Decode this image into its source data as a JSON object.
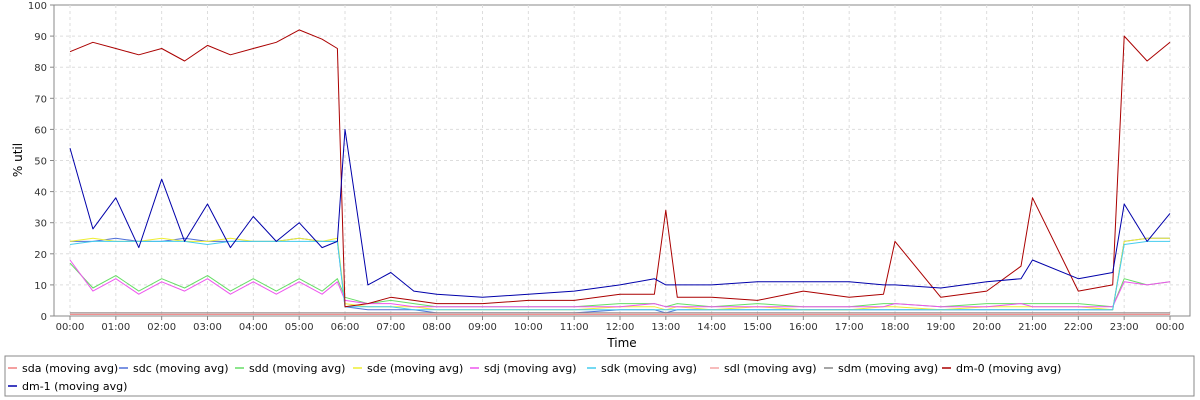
{
  "chart_data": {
    "type": "line",
    "title": "",
    "xlabel": "Time",
    "ylabel": "% util",
    "ylim": [
      0,
      100
    ],
    "yticks": [
      0,
      10,
      20,
      30,
      40,
      50,
      60,
      70,
      80,
      90,
      100
    ],
    "xlim": [
      "00:00",
      "24:00"
    ],
    "xtick_labels": [
      "00:00",
      "01:00",
      "02:00",
      "03:00",
      "04:00",
      "05:00",
      "06:00",
      "07:00",
      "08:00",
      "09:00",
      "10:00",
      "11:00",
      "12:00",
      "13:00",
      "14:00",
      "15:00",
      "16:00",
      "17:00",
      "18:00",
      "19:00",
      "20:00",
      "21:00",
      "22:00",
      "23:00",
      "00:00"
    ],
    "grid": true,
    "legend_position": "bottom",
    "x": [
      "00:00",
      "00:30",
      "01:00",
      "01:30",
      "02:00",
      "02:30",
      "03:00",
      "03:30",
      "04:00",
      "04:30",
      "05:00",
      "05:30",
      "05:50",
      "06:00",
      "06:30",
      "07:00",
      "07:30",
      "08:00",
      "09:00",
      "10:00",
      "11:00",
      "12:00",
      "12:45",
      "13:00",
      "13:15",
      "14:00",
      "15:00",
      "16:00",
      "17:00",
      "17:45",
      "18:00",
      "19:00",
      "20:00",
      "20:45",
      "21:00",
      "22:00",
      "22:45",
      "23:00",
      "23:30",
      "24:00"
    ],
    "series": [
      {
        "name": "sda (moving avg)",
        "color": "#f08080",
        "values": [
          0.5,
          0.5,
          0.5,
          0.5,
          0.5,
          0.5,
          0.5,
          0.5,
          0.5,
          0.5,
          0.5,
          0.5,
          0.5,
          0.5,
          0.5,
          0.5,
          0.5,
          0.5,
          0.5,
          0.5,
          0.5,
          0.5,
          0.5,
          0.5,
          0.5,
          0.5,
          0.5,
          0.5,
          0.5,
          0.5,
          0.5,
          0.5,
          0.5,
          0.5,
          0.5,
          0.5,
          0.5,
          0.5,
          0.5,
          0.5
        ]
      },
      {
        "name": "sdc (moving avg)",
        "color": "#4f6fd8",
        "values": [
          24,
          24,
          25,
          24,
          24,
          25,
          24,
          24,
          24,
          24,
          25,
          24,
          24,
          3,
          2,
          2,
          2,
          1,
          1,
          1,
          1,
          2,
          2,
          1,
          2,
          2,
          2,
          2,
          2,
          2,
          2,
          2,
          2,
          2,
          2,
          2,
          2,
          24,
          25,
          25
        ]
      },
      {
        "name": "sdd (moving avg)",
        "color": "#66dd66",
        "values": [
          17,
          9,
          13,
          8,
          12,
          9,
          13,
          8,
          12,
          8,
          12,
          8,
          12,
          6,
          4,
          5,
          4,
          3,
          3,
          3,
          3,
          4,
          4,
          3,
          4,
          3,
          4,
          3,
          3,
          4,
          4,
          3,
          4,
          4,
          4,
          4,
          3,
          12,
          10,
          11
        ]
      },
      {
        "name": "sde (moving avg)",
        "color": "#eeee33",
        "values": [
          24,
          25,
          24,
          24,
          25,
          24,
          24,
          25,
          24,
          24,
          25,
          24,
          25,
          4,
          3,
          3,
          3,
          2,
          2,
          2,
          2,
          3,
          3,
          2,
          3,
          2,
          3,
          2,
          2,
          3,
          3,
          2,
          3,
          3,
          3,
          3,
          2,
          24,
          25,
          25
        ]
      },
      {
        "name": "sdj (moving avg)",
        "color": "#ee55ee",
        "values": [
          18,
          8,
          12,
          7,
          11,
          8,
          12,
          7,
          11,
          7,
          11,
          7,
          11,
          5,
          4,
          4,
          3,
          3,
          3,
          3,
          3,
          3,
          4,
          3,
          3,
          3,
          3,
          3,
          3,
          3,
          4,
          3,
          3,
          4,
          3,
          3,
          3,
          11,
          10,
          11
        ]
      },
      {
        "name": "sdk (moving avg)",
        "color": "#44ccee",
        "values": [
          23,
          24,
          24,
          24,
          24,
          24,
          23,
          24,
          24,
          24,
          24,
          24,
          24,
          3,
          3,
          3,
          2,
          2,
          2,
          2,
          2,
          2,
          2,
          2,
          2,
          2,
          2,
          2,
          2,
          2,
          2,
          2,
          2,
          2,
          2,
          2,
          2,
          23,
          24,
          24
        ]
      },
      {
        "name": "sdl (moving avg)",
        "color": "#f4a6a6",
        "values": [
          1,
          1,
          1,
          1,
          1,
          1,
          1,
          1,
          1,
          1,
          1,
          1,
          1,
          1,
          1,
          1,
          1,
          1,
          1,
          1,
          1,
          1,
          1,
          1,
          1,
          1,
          1,
          1,
          1,
          1,
          1,
          1,
          1,
          1,
          1,
          1,
          1,
          1,
          1,
          1
        ]
      },
      {
        "name": "sdm (moving avg)",
        "color": "#888888",
        "values": [
          1,
          1,
          1,
          1,
          1,
          1,
          1,
          1,
          1,
          1,
          1,
          1,
          1,
          1,
          1,
          1,
          1,
          1,
          1,
          1,
          1,
          1,
          1,
          1,
          1,
          1,
          1,
          1,
          1,
          1,
          1,
          1,
          1,
          1,
          1,
          1,
          1,
          1,
          1,
          1
        ]
      },
      {
        "name": "dm-0 (moving avg)",
        "color": "#aa0000",
        "values": [
          85,
          88,
          86,
          84,
          86,
          82,
          87,
          84,
          86,
          88,
          92,
          89,
          86,
          3,
          4,
          6,
          5,
          4,
          4,
          5,
          5,
          7,
          7,
          34,
          6,
          6,
          5,
          8,
          6,
          7,
          24,
          6,
          8,
          16,
          38,
          8,
          10,
          90,
          82,
          88
        ]
      },
      {
        "name": "dm-1 (moving avg)",
        "color": "#0000aa",
        "values": [
          54,
          28,
          38,
          22,
          44,
          24,
          36,
          22,
          32,
          24,
          30,
          22,
          24,
          60,
          10,
          14,
          8,
          7,
          6,
          7,
          8,
          10,
          12,
          10,
          10,
          10,
          11,
          11,
          11,
          10,
          10,
          9,
          11,
          12,
          18,
          12,
          14,
          36,
          24,
          33
        ]
      }
    ]
  }
}
